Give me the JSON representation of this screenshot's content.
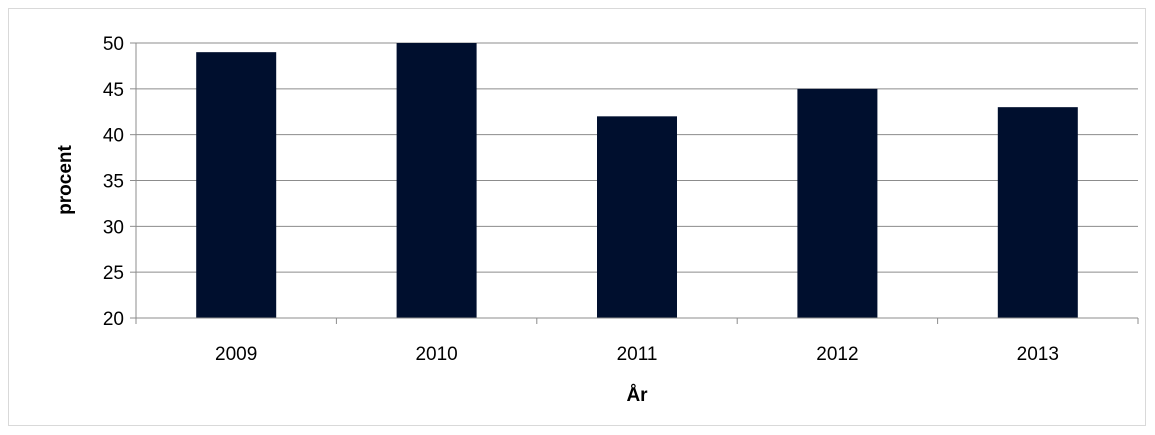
{
  "chart_data": {
    "type": "bar",
    "categories": [
      "2009",
      "2010",
      "2011",
      "2012",
      "2013"
    ],
    "values": [
      49,
      50,
      42,
      45,
      43
    ],
    "title": "",
    "xlabel": "År",
    "ylabel": "procent",
    "ylim": [
      20,
      50
    ],
    "yticks": [
      20,
      25,
      30,
      35,
      40,
      45,
      50
    ],
    "grid": true,
    "legend": "none",
    "colors": {
      "bar": "#000f2e",
      "grid": "#8c8c8c",
      "axis": "#8c8c8c",
      "frame": "#d9d9d9"
    }
  }
}
